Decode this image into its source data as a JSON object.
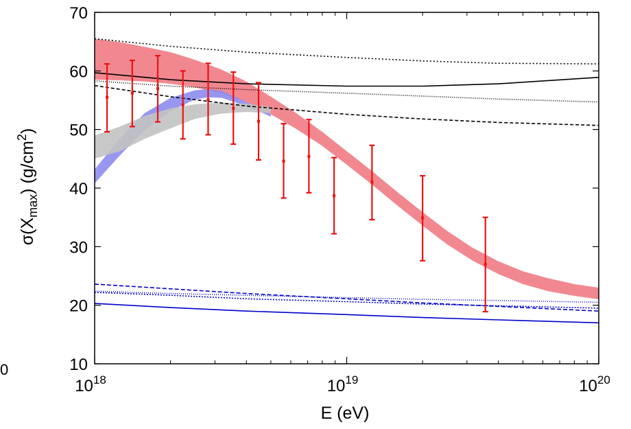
{
  "chart_data": {
    "type": "line",
    "title": "",
    "xlabel": "E (eV)",
    "ylabel": {
      "prefix": "σ(X",
      "sub": "max",
      "mid": ") (g/cm",
      "sup": "2",
      "suffix": ")"
    },
    "x_scale": "log",
    "xlim": [
      1e+18,
      1e+20
    ],
    "ylim": [
      10,
      70
    ],
    "x_ticks": [
      {
        "value": 1e+18,
        "base": "10",
        "exp": "18"
      },
      {
        "value": 1e+19,
        "base": "10",
        "exp": "19"
      },
      {
        "value": 1e+20,
        "base": "10",
        "exp": "20"
      }
    ],
    "y_ticks": [
      10,
      20,
      30,
      40,
      50,
      60,
      70
    ],
    "stray_label": "0",
    "grid": false,
    "legend": "none",
    "bands": [
      {
        "color": "#f07b84",
        "x": [
          1e+18,
          1.26e+18,
          1.58e+18,
          2e+18,
          2.5e+18,
          3.16e+18,
          4e+18,
          5e+18,
          6.3e+18,
          8e+18,
          1e+19,
          1.26e+19,
          1.58e+19,
          2e+19,
          2.5e+19,
          3.16e+19,
          4e+19,
          5e+19,
          6.3e+19,
          8e+19,
          1e+20
        ],
        "upper": [
          65.5,
          64.9,
          64.1,
          63.2,
          61.9,
          60.3,
          58.2,
          55.6,
          52.8,
          49.6,
          46.3,
          42.9,
          39.4,
          35.9,
          32.7,
          29.8,
          27.5,
          25.8,
          24.6,
          23.6,
          23.0
        ],
        "lower": [
          58.5,
          58.4,
          58.2,
          57.8,
          57.2,
          56.2,
          54.7,
          52.6,
          50.1,
          47.2,
          44.0,
          40.6,
          37.1,
          33.6,
          30.4,
          27.6,
          25.3,
          23.6,
          22.4,
          21.6,
          21.0
        ]
      },
      {
        "color": "#8c8cf0",
        "x": [
          1e+18,
          1.26e+18,
          1.58e+18,
          2e+18,
          2.5e+18,
          2.8e+18,
          3.2e+18,
          4e+18,
          5e+18
        ],
        "upper": [
          43.2,
          48.5,
          52.8,
          55.4,
          56.7,
          56.9,
          56.6,
          54.7,
          52.6
        ],
        "lower": [
          40.8,
          45.6,
          49.9,
          53.2,
          55.1,
          55.5,
          55.4,
          54.0,
          52.2
        ]
      },
      {
        "color": "#c2c2c2",
        "x": [
          1e+18,
          1.26e+18,
          1.58e+18,
          2e+18,
          2.5e+18,
          3.16e+18,
          4e+18,
          5e+18
        ],
        "upper": [
          49.0,
          50.5,
          52.3,
          53.6,
          54.3,
          54.6,
          54.4,
          53.8
        ],
        "lower": [
          45.0,
          46.3,
          48.4,
          50.2,
          51.8,
          52.7,
          53.0,
          52.8
        ]
      }
    ],
    "series": [
      {
        "color": "#000000",
        "dash": "",
        "x": [
          1e+18,
          2e+18,
          4e+18,
          1e+19,
          2e+19,
          4e+19,
          1e+20
        ],
        "y": [
          59.7,
          58.5,
          57.8,
          57.4,
          57.4,
          57.8,
          58.9
        ]
      },
      {
        "color": "#000000",
        "dash": "5 3",
        "x": [
          1e+18,
          2e+18,
          4e+18,
          1e+19,
          2e+19,
          4e+19,
          1e+20
        ],
        "y": [
          57.5,
          55.6,
          54.0,
          52.6,
          51.8,
          51.2,
          50.7
        ]
      },
      {
        "color": "#000000",
        "dash": "2 3",
        "x": [
          1e+18,
          2e+18,
          4e+18,
          1e+19,
          2e+19,
          4e+19,
          1e+20
        ],
        "y": [
          65.5,
          64.2,
          63.2,
          62.3,
          61.7,
          61.3,
          61.2
        ]
      },
      {
        "color": "#000000",
        "dash": "1 2",
        "x": [
          1e+18,
          2e+18,
          4e+18,
          1e+19,
          2e+19,
          4e+19,
          1e+20
        ],
        "y": [
          58.3,
          57.4,
          56.8,
          56.2,
          55.7,
          55.2,
          54.7
        ]
      },
      {
        "color": "#0000cc",
        "dash": "",
        "x": [
          1e+18,
          2e+18,
          4e+18,
          1e+19,
          2e+19,
          4e+19,
          1e+20
        ],
        "y": [
          20.3,
          19.6,
          19.0,
          18.4,
          17.9,
          17.5,
          17.0
        ]
      },
      {
        "color": "#0000cc",
        "dash": "6 3",
        "x": [
          1e+18,
          2e+18,
          4e+18,
          1e+19,
          2e+19,
          4e+19,
          1e+20
        ],
        "y": [
          23.6,
          22.8,
          22.0,
          21.1,
          20.4,
          19.8,
          19.0
        ]
      },
      {
        "color": "#0000cc",
        "dash": "2 2",
        "x": [
          1e+18,
          2e+18,
          4e+18,
          1e+19,
          2e+19,
          4e+19,
          1e+20
        ],
        "y": [
          22.2,
          21.7,
          21.1,
          20.6,
          20.2,
          19.9,
          19.5
        ]
      },
      {
        "color": "#0000cc",
        "dash": "1 2",
        "x": [
          1e+18,
          2e+18,
          4e+18,
          1e+19,
          2e+19,
          4e+19,
          1e+20
        ],
        "y": [
          22.4,
          22.0,
          21.7,
          21.3,
          21.0,
          20.8,
          20.5
        ]
      }
    ],
    "data_points": {
      "color": "#ee1111",
      "points": [
        {
          "x": 1.12e+18,
          "y": 55.5,
          "ylow": 49.6,
          "yhigh": 61.2
        },
        {
          "x": 1.41e+18,
          "y": 56.2,
          "ylow": 50.5,
          "yhigh": 61.8
        },
        {
          "x": 1.78e+18,
          "y": 57.0,
          "ylow": 51.3,
          "yhigh": 62.6
        },
        {
          "x": 2.24e+18,
          "y": 54.2,
          "ylow": 48.4,
          "yhigh": 60.0
        },
        {
          "x": 2.82e+18,
          "y": 55.1,
          "ylow": 49.1,
          "yhigh": 61.3
        },
        {
          "x": 3.55e+18,
          "y": 53.6,
          "ylow": 47.5,
          "yhigh": 59.8
        },
        {
          "x": 4.47e+18,
          "y": 51.4,
          "ylow": 44.8,
          "yhigh": 58.0
        },
        {
          "x": 5.62e+18,
          "y": 44.6,
          "ylow": 38.3,
          "yhigh": 51.0
        },
        {
          "x": 7.08e+18,
          "y": 45.4,
          "ylow": 39.2,
          "yhigh": 51.7
        },
        {
          "x": 8.91e+18,
          "y": 38.7,
          "ylow": 32.2,
          "yhigh": 45.2
        },
        {
          "x": 1.26e+19,
          "y": 41.0,
          "ylow": 34.6,
          "yhigh": 47.3
        },
        {
          "x": 2e+19,
          "y": 34.9,
          "ylow": 27.6,
          "yhigh": 42.1
        },
        {
          "x": 3.55e+19,
          "y": 27.0,
          "ylow": 18.9,
          "yhigh": 35.0
        }
      ]
    }
  }
}
